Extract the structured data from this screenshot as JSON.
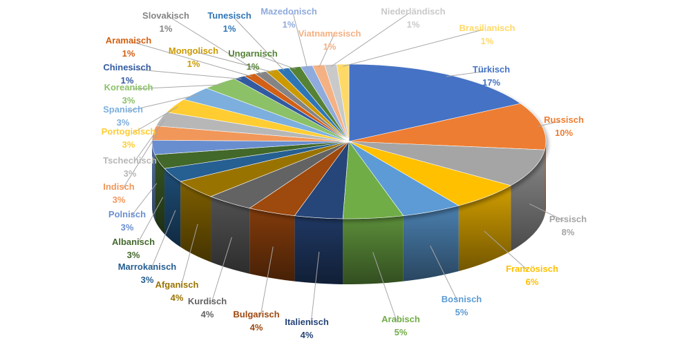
{
  "chart_data": {
    "type": "pie",
    "style": "3d-exploded-perspective",
    "start_angle": "12 o'clock, clockwise",
    "series": [
      {
        "label": "Türkisch",
        "pct_text": "17%",
        "value": 17,
        "color": "#4472c4"
      },
      {
        "label": "Russisch",
        "pct_text": "10%",
        "value": 10,
        "color": "#ed7d31"
      },
      {
        "label": "Persisch",
        "pct_text": "8%",
        "value": 8,
        "color": "#a5a5a5"
      },
      {
        "label": "Französisch",
        "pct_text": "6%",
        "value": 6,
        "color": "#ffc000"
      },
      {
        "label": "Bosnisch",
        "pct_text": "5%",
        "value": 5,
        "color": "#5b9bd5"
      },
      {
        "label": "Arabisch",
        "pct_text": "5%",
        "value": 5,
        "color": "#70ad47"
      },
      {
        "label": "Italienisch",
        "pct_text": "4%",
        "value": 4,
        "color": "#264478"
      },
      {
        "label": "Bulgarisch",
        "pct_text": "4%",
        "value": 4,
        "color": "#9e480e"
      },
      {
        "label": "Kurdisch",
        "pct_text": "4%",
        "value": 4,
        "color": "#636363"
      },
      {
        "label": "Afganisch",
        "pct_text": "4%",
        "value": 4,
        "color": "#997300"
      },
      {
        "label": "Marrokanisch",
        "pct_text": "3%",
        "value": 3,
        "color": "#255e91"
      },
      {
        "label": "Albanisch",
        "pct_text": "3%",
        "value": 3,
        "color": "#43682b"
      },
      {
        "label": "Polnisch",
        "pct_text": "3%",
        "value": 3,
        "color": "#698ed0"
      },
      {
        "label": "Indisch",
        "pct_text": "3%",
        "value": 3,
        "color": "#f1975a"
      },
      {
        "label": "Tschechisch",
        "pct_text": "3%",
        "value": 3,
        "color": "#b7b7b7"
      },
      {
        "label": "Portogisisch",
        "pct_text": "3%",
        "value": 3,
        "color": "#ffcd33"
      },
      {
        "label": "Spanisch",
        "pct_text": "3%",
        "value": 3,
        "color": "#7cafdd"
      },
      {
        "label": "Koreanisch",
        "pct_text": "3%",
        "value": 3,
        "color": "#8cc168"
      },
      {
        "label": "Chinesisch",
        "pct_text": "1%",
        "value": 1,
        "color": "#335aa1"
      },
      {
        "label": "Aramaisch",
        "pct_text": "1%",
        "value": 1,
        "color": "#d26012"
      },
      {
        "label": "Slovakisch",
        "pct_text": "1%",
        "value": 1,
        "color": "#848484"
      },
      {
        "label": "Mongolisch",
        "pct_text": "1%",
        "value": 1,
        "color": "#cc9a00"
      },
      {
        "label": "Tunesisch",
        "pct_text": "1%",
        "value": 1,
        "color": "#2e75b6"
      },
      {
        "label": "Ungarnisch",
        "pct_text": "1%",
        "value": 1,
        "color": "#548235"
      },
      {
        "label": "Mazedonisch",
        "pct_text": "1%",
        "value": 1,
        "color": "#8faadc"
      },
      {
        "label": "Viatnamesisch",
        "pct_text": "1%",
        "value": 1,
        "color": "#f4b183"
      },
      {
        "label": "Niederländisch",
        "pct_text": "1%",
        "value": 1,
        "color": "#c9c9c9"
      },
      {
        "label": "Brasilianisch",
        "pct_text": "1%",
        "value": 1,
        "color": "#ffd966"
      }
    ]
  }
}
